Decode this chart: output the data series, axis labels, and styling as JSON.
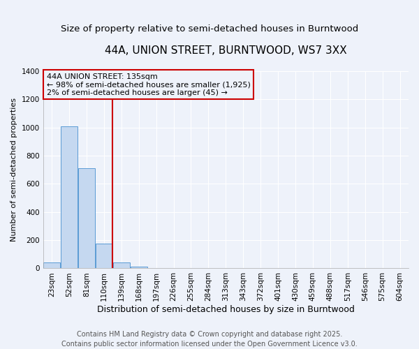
{
  "title": "44A, UNION STREET, BURNTWOOD, WS7 3XX",
  "subtitle": "Size of property relative to semi-detached houses in Burntwood",
  "xlabel": "Distribution of semi-detached houses by size in Burntwood",
  "ylabel": "Number of semi-detached properties",
  "categories": [
    "23sqm",
    "52sqm",
    "81sqm",
    "110sqm",
    "139sqm",
    "168sqm",
    "197sqm",
    "226sqm",
    "255sqm",
    "284sqm",
    "313sqm",
    "343sqm",
    "372sqm",
    "401sqm",
    "430sqm",
    "459sqm",
    "488sqm",
    "517sqm",
    "546sqm",
    "575sqm",
    "604sqm"
  ],
  "values": [
    40,
    1010,
    710,
    175,
    40,
    10,
    0,
    0,
    0,
    0,
    0,
    0,
    0,
    0,
    0,
    0,
    0,
    0,
    0,
    0,
    0
  ],
  "bar_color": "#c5d8f0",
  "bar_edge_color": "#5b9bd5",
  "red_line_index": 4,
  "annotation_line1": "44A UNION STREET: 135sqm",
  "annotation_line2": "← 98% of semi-detached houses are smaller (1,925)",
  "annotation_line3": "2% of semi-detached houses are larger (45) →",
  "annotation_box_color": "#cc0000",
  "ylim": [
    0,
    1400
  ],
  "yticks": [
    0,
    200,
    400,
    600,
    800,
    1000,
    1200,
    1400
  ],
  "footer_line1": "Contains HM Land Registry data © Crown copyright and database right 2025.",
  "footer_line2": "Contains public sector information licensed under the Open Government Licence v3.0.",
  "background_color": "#eef2fa",
  "grid_color": "#ffffff",
  "title_fontsize": 11,
  "subtitle_fontsize": 9.5,
  "ylabel_fontsize": 8,
  "xlabel_fontsize": 9,
  "tick_fontsize": 7.5,
  "annotation_fontsize": 8,
  "footer_fontsize": 7
}
